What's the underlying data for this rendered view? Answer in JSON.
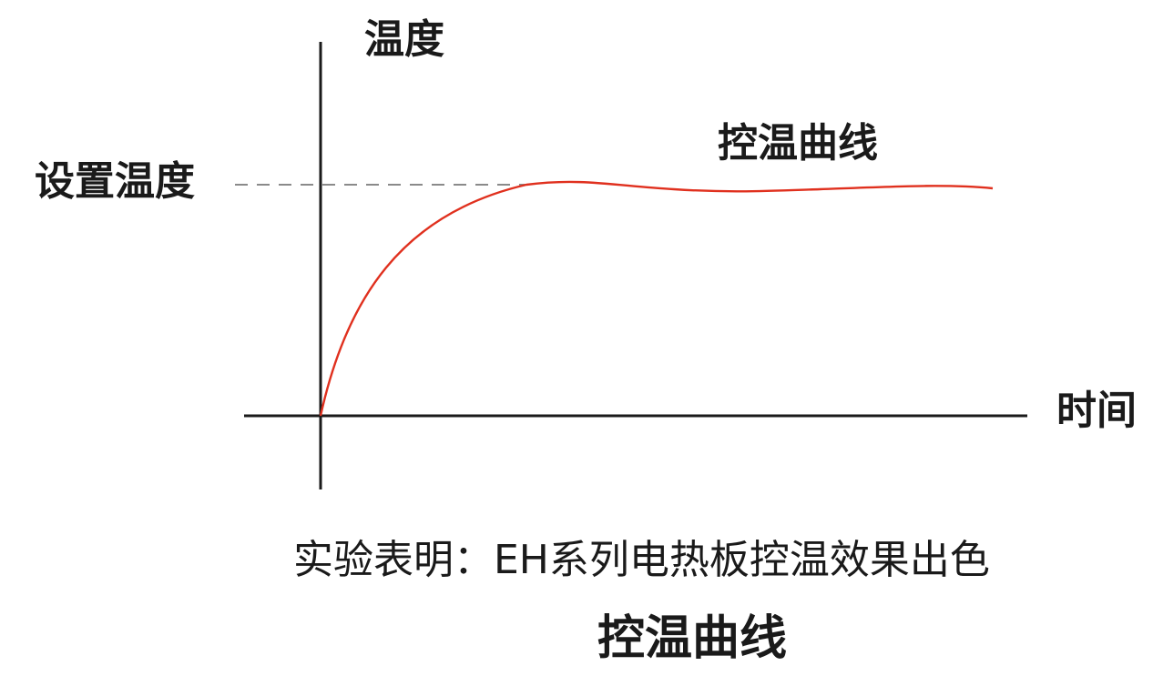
{
  "diagram": {
    "y_axis_label": "温度",
    "x_axis_label": "时间",
    "setpoint_label": "设置温度",
    "curve_label": "控温曲线"
  },
  "caption": "实验表明：EH系列电热板控温效果出色",
  "figure_title": "控温曲线",
  "colors": {
    "curve": "#e0301e",
    "axes": "#1a1a1a",
    "setpoint_line": "#8a8a8a",
    "background": "#ffffff"
  }
}
